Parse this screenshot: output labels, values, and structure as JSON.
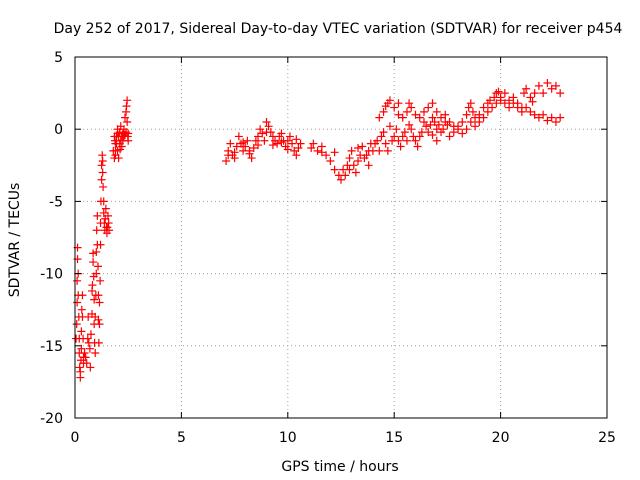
{
  "chart_data": {
    "type": "scatter",
    "title": "Day 252 of 2017, Sidereal Day-to-day VTEC variation (SDTVAR) for receiver p454",
    "xlabel": "GPS time / hours",
    "ylabel": "SDTVAR / TECUs",
    "xlim": [
      0,
      25
    ],
    "ylim": [
      -20,
      5
    ],
    "xticks": [
      0,
      5,
      10,
      15,
      20,
      25
    ],
    "yticks": [
      -20,
      -15,
      -10,
      -5,
      0,
      5
    ],
    "grid": true,
    "marker": "+",
    "colors": {
      "series": "#ff0000",
      "axes": "#000000",
      "grid": "#a0a0a0"
    },
    "series": [
      {
        "name": "p454",
        "points": [
          [
            0.05,
            -14.5
          ],
          [
            0.08,
            -13.5
          ],
          [
            0.1,
            -12.0
          ],
          [
            0.1,
            -10.5
          ],
          [
            0.12,
            -9.0
          ],
          [
            0.12,
            -8.2
          ],
          [
            0.15,
            -10.0
          ],
          [
            0.15,
            -11.5
          ],
          [
            0.18,
            -13.0
          ],
          [
            0.2,
            -14.5
          ],
          [
            0.2,
            -15.5
          ],
          [
            0.22,
            -16.5
          ],
          [
            0.25,
            -17.2
          ],
          [
            0.25,
            -16.8
          ],
          [
            0.28,
            -16.0
          ],
          [
            0.3,
            -15.2
          ],
          [
            0.3,
            -14.0
          ],
          [
            0.32,
            -12.5
          ],
          [
            0.35,
            -11.5
          ],
          [
            0.35,
            -13.0
          ],
          [
            0.38,
            -14.5
          ],
          [
            0.4,
            -15.8
          ],
          [
            0.4,
            -16.2
          ],
          [
            0.45,
            -15.5
          ],
          [
            0.5,
            -15.8
          ],
          [
            0.55,
            -16.2
          ],
          [
            0.6,
            -14.5
          ],
          [
            0.62,
            -13.0
          ],
          [
            0.65,
            -14.8
          ],
          [
            0.7,
            -15.2
          ],
          [
            0.72,
            -16.5
          ],
          [
            0.75,
            -14.2
          ],
          [
            0.8,
            -12.8
          ],
          [
            0.8,
            -11.2
          ],
          [
            0.82,
            -10.8
          ],
          [
            0.85,
            -9.2
          ],
          [
            0.85,
            -8.6
          ],
          [
            0.88,
            -10.2
          ],
          [
            0.9,
            -11.8
          ],
          [
            0.9,
            -13.5
          ],
          [
            0.92,
            -14.8
          ],
          [
            0.95,
            -15.5
          ],
          [
            0.95,
            -13.0
          ],
          [
            0.98,
            -11.5
          ],
          [
            1.0,
            -10.0
          ],
          [
            1.0,
            -8.5
          ],
          [
            1.02,
            -7.0
          ],
          [
            1.05,
            -6.0
          ],
          [
            1.05,
            -8.0
          ],
          [
            1.08,
            -9.5
          ],
          [
            1.1,
            -11.5
          ],
          [
            1.1,
            -13.2
          ],
          [
            1.12,
            -14.8
          ],
          [
            1.15,
            -13.5
          ],
          [
            1.15,
            -12.0
          ],
          [
            1.18,
            -10.5
          ],
          [
            1.2,
            -8.0
          ],
          [
            1.2,
            -6.5
          ],
          [
            1.22,
            -5.0
          ],
          [
            1.25,
            -3.5
          ],
          [
            1.25,
            -2.5
          ],
          [
            1.28,
            -1.8
          ],
          [
            1.3,
            -2.2
          ],
          [
            1.3,
            -3.0
          ],
          [
            1.32,
            -4.0
          ],
          [
            1.35,
            -5.0
          ],
          [
            1.35,
            -5.8
          ],
          [
            1.38,
            -6.5
          ],
          [
            1.4,
            -7.0
          ],
          [
            1.42,
            -6.2
          ],
          [
            1.45,
            -5.5
          ],
          [
            1.48,
            -6.8
          ],
          [
            1.5,
            -7.2
          ],
          [
            1.52,
            -6.8
          ],
          [
            1.55,
            -6.0
          ],
          [
            1.58,
            -6.5
          ],
          [
            1.6,
            -7.0
          ],
          [
            1.85,
            -2.0
          ],
          [
            1.9,
            -1.5
          ],
          [
            1.9,
            -1.0
          ],
          [
            1.95,
            -0.5
          ],
          [
            2.0,
            0.0
          ],
          [
            2.0,
            -1.5
          ],
          [
            2.05,
            -2.0
          ],
          [
            2.1,
            -1.0
          ],
          [
            2.15,
            0.2
          ],
          [
            2.2,
            -0.5
          ],
          [
            2.25,
            -0.8
          ],
          [
            2.3,
            -0.5
          ],
          [
            2.3,
            0.0
          ],
          [
            2.35,
            0.8
          ],
          [
            2.4,
            1.2
          ],
          [
            2.45,
            2.0
          ],
          [
            2.45,
            0.5
          ],
          [
            2.5,
            -0.3
          ],
          [
            2.5,
            -0.8
          ],
          [
            1.8,
            -1.5
          ],
          [
            1.85,
            -0.5
          ],
          [
            1.9,
            -1.8
          ],
          [
            1.95,
            -1.0
          ],
          [
            2.05,
            -0.5
          ],
          [
            2.1,
            -0.2
          ],
          [
            2.15,
            -0.8
          ],
          [
            2.2,
            -1.2
          ],
          [
            2.25,
            -0.3
          ],
          [
            2.35,
            -0.4
          ],
          [
            2.4,
            -0.2
          ],
          [
            2.42,
            1.6
          ],
          [
            2.48,
            -0.5
          ],
          [
            1.88,
            -0.8
          ],
          [
            2.0,
            -0.3
          ],
          [
            2.12,
            -1.4
          ],
          [
            7.1,
            -2.2
          ],
          [
            7.2,
            -1.5
          ],
          [
            7.3,
            -1.0
          ],
          [
            7.4,
            -1.8
          ],
          [
            7.5,
            -2.0
          ],
          [
            7.6,
            -1.2
          ],
          [
            7.7,
            -0.5
          ],
          [
            7.8,
            -1.0
          ],
          [
            7.9,
            -1.5
          ],
          [
            8.0,
            -1.2
          ],
          [
            8.1,
            -0.8
          ],
          [
            8.2,
            -1.5
          ],
          [
            8.3,
            -2.0
          ],
          [
            8.4,
            -1.3
          ],
          [
            8.5,
            -0.8
          ],
          [
            8.6,
            -0.5
          ],
          [
            8.7,
            0.0
          ],
          [
            8.8,
            -0.3
          ],
          [
            8.9,
            -0.8
          ],
          [
            9.0,
            0.5
          ],
          [
            9.1,
            0.2
          ],
          [
            9.2,
            -0.2
          ],
          [
            9.3,
            -0.5
          ],
          [
            9.4,
            -0.8
          ],
          [
            9.5,
            -1.0
          ],
          [
            9.6,
            -0.5
          ],
          [
            9.7,
            -0.3
          ],
          [
            9.8,
            -0.8
          ],
          [
            9.9,
            -1.2
          ],
          [
            10.0,
            -0.8
          ],
          [
            10.1,
            -0.5
          ],
          [
            10.2,
            -1.0
          ],
          [
            10.3,
            -1.5
          ],
          [
            10.4,
            -1.8
          ],
          [
            10.5,
            -1.3
          ],
          [
            10.6,
            -1.0
          ],
          [
            7.2,
            -1.8
          ],
          [
            7.5,
            -1.6
          ],
          [
            7.9,
            -0.9
          ],
          [
            8.2,
            -1.7
          ],
          [
            8.6,
            -1.1
          ],
          [
            9.0,
            -0.2
          ],
          [
            9.3,
            -1.1
          ],
          [
            9.7,
            -0.9
          ],
          [
            10.0,
            -1.4
          ],
          [
            10.4,
            -0.7
          ],
          [
            11.1,
            -1.3
          ],
          [
            11.2,
            -1.0
          ],
          [
            11.4,
            -1.5
          ],
          [
            11.6,
            -1.2
          ],
          [
            11.8,
            -1.8
          ],
          [
            12.0,
            -2.2
          ],
          [
            12.2,
            -2.8
          ],
          [
            12.4,
            -3.2
          ],
          [
            12.5,
            -3.5
          ],
          [
            12.6,
            -2.8
          ],
          [
            12.7,
            -3.2
          ],
          [
            12.8,
            -2.5
          ],
          [
            12.9,
            -2.0
          ],
          [
            13.0,
            -1.5
          ],
          [
            13.1,
            -2.5
          ],
          [
            13.2,
            -3.0
          ],
          [
            13.3,
            -2.2
          ],
          [
            13.4,
            -1.8
          ],
          [
            13.5,
            -1.2
          ],
          [
            13.6,
            -2.0
          ],
          [
            13.7,
            -1.8
          ],
          [
            13.8,
            -1.5
          ],
          [
            13.9,
            -1.0
          ],
          [
            14.0,
            -1.5
          ],
          [
            14.1,
            -1.0
          ],
          [
            14.2,
            -0.8
          ],
          [
            14.3,
            -1.5
          ],
          [
            14.4,
            -0.5
          ],
          [
            14.5,
            -0.2
          ],
          [
            14.6,
            -1.0
          ],
          [
            14.7,
            -1.5
          ],
          [
            14.8,
            0.2
          ],
          [
            14.9,
            -0.8
          ],
          [
            15.0,
            -0.5
          ],
          [
            15.1,
            0.0
          ],
          [
            15.2,
            -0.8
          ],
          [
            15.3,
            -1.2
          ],
          [
            15.4,
            -0.5
          ],
          [
            15.5,
            -0.2
          ],
          [
            15.6,
            -0.8
          ],
          [
            15.7,
            0.3
          ],
          [
            15.8,
            0.0
          ],
          [
            15.9,
            -0.5
          ],
          [
            16.0,
            -0.8
          ],
          [
            16.1,
            -1.2
          ],
          [
            16.2,
            -0.5
          ],
          [
            16.3,
            -0.2
          ],
          [
            16.4,
            0.5
          ],
          [
            16.5,
            0.2
          ],
          [
            16.6,
            -0.2
          ],
          [
            16.7,
            0.3
          ],
          [
            16.8,
            0.8
          ],
          [
            16.9,
            0.5
          ],
          [
            17.0,
            0.0
          ],
          [
            17.1,
            0.3
          ],
          [
            17.2,
            -0.2
          ],
          [
            17.3,
            0.0
          ],
          [
            17.4,
            0.5
          ],
          [
            17.5,
            0.3
          ],
          [
            14.3,
            0.8
          ],
          [
            14.5,
            1.2
          ],
          [
            14.7,
            1.8
          ],
          [
            14.8,
            2.0
          ],
          [
            15.0,
            1.5
          ],
          [
            15.2,
            1.0
          ],
          [
            15.4,
            0.8
          ],
          [
            15.6,
            1.2
          ],
          [
            15.7,
            1.8
          ],
          [
            15.8,
            1.5
          ],
          [
            16.0,
            1.0
          ],
          [
            16.2,
            0.8
          ],
          [
            16.4,
            1.2
          ],
          [
            16.6,
            1.5
          ],
          [
            16.8,
            1.8
          ],
          [
            17.0,
            1.2
          ],
          [
            17.2,
            0.8
          ],
          [
            17.4,
            1.0
          ],
          [
            17.6,
            0.5
          ],
          [
            17.8,
            0.2
          ],
          [
            18.0,
            0.0
          ],
          [
            18.2,
            0.5
          ],
          [
            18.4,
            1.0
          ],
          [
            18.5,
            1.5
          ],
          [
            18.6,
            1.8
          ],
          [
            18.7,
            1.2
          ],
          [
            18.8,
            0.8
          ],
          [
            19.0,
            1.0
          ],
          [
            19.2,
            1.5
          ],
          [
            19.4,
            1.8
          ],
          [
            19.5,
            2.0
          ],
          [
            19.7,
            2.2
          ],
          [
            19.8,
            2.5
          ],
          [
            20.0,
            2.2
          ],
          [
            20.2,
            2.5
          ],
          [
            20.4,
            2.0
          ],
          [
            20.6,
            2.2
          ],
          [
            20.8,
            1.8
          ],
          [
            21.0,
            1.5
          ],
          [
            21.1,
            2.5
          ],
          [
            21.2,
            2.8
          ],
          [
            21.4,
            2.2
          ],
          [
            21.6,
            2.5
          ],
          [
            21.8,
            3.0
          ],
          [
            22.0,
            2.5
          ],
          [
            22.2,
            3.2
          ],
          [
            22.4,
            2.8
          ],
          [
            22.6,
            3.0
          ],
          [
            22.8,
            2.5
          ],
          [
            17.6,
            -0.5
          ],
          [
            17.8,
            -0.2
          ],
          [
            18.0,
            0.2
          ],
          [
            18.2,
            -0.3
          ],
          [
            18.4,
            0.0
          ],
          [
            18.6,
            0.5
          ],
          [
            18.8,
            0.2
          ],
          [
            19.0,
            0.5
          ],
          [
            19.2,
            0.8
          ],
          [
            19.4,
            1.2
          ],
          [
            19.6,
            1.5
          ],
          [
            19.8,
            1.8
          ],
          [
            20.0,
            2.0
          ],
          [
            20.2,
            1.8
          ],
          [
            20.4,
            1.5
          ],
          [
            20.6,
            1.8
          ],
          [
            20.8,
            1.5
          ],
          [
            21.0,
            1.2
          ],
          [
            21.2,
            1.5
          ],
          [
            21.4,
            1.2
          ],
          [
            21.6,
            1.0
          ],
          [
            21.8,
            0.8
          ],
          [
            22.0,
            1.0
          ],
          [
            22.2,
            0.6
          ],
          [
            22.4,
            0.8
          ],
          [
            22.6,
            0.5
          ],
          [
            22.8,
            0.8
          ],
          [
            17.0,
            -0.8
          ],
          [
            16.8,
            -0.4
          ],
          [
            15.2,
            1.8
          ],
          [
            14.6,
            1.6
          ],
          [
            13.8,
            -2.5
          ],
          [
            13.3,
            -1.3
          ],
          [
            12.2,
            -1.6
          ],
          [
            11.6,
            -1.6
          ],
          [
            12.9,
            -2.8
          ],
          [
            19.9,
            2.6
          ],
          [
            21.5,
            1.9
          ]
        ]
      }
    ]
  }
}
